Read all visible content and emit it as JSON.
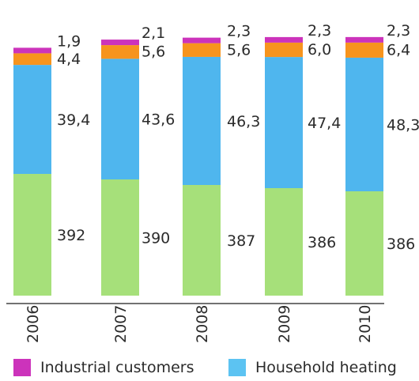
{
  "chart_data": {
    "type": "bar",
    "stacked": true,
    "categories": [
      "2006",
      "2007",
      "2008",
      "2009",
      "2010"
    ],
    "series": [
      {
        "name": "",
        "color": "#a6e07a",
        "values": [
          "392",
          "390",
          "387",
          "386",
          "386"
        ]
      },
      {
        "name": "Household heating",
        "color": "#4fb6ee",
        "values": [
          "39,4",
          "43,6",
          "46,3",
          "47,4",
          "48,3"
        ]
      },
      {
        "name": "",
        "color": "#f7941d",
        "values": [
          "4,4",
          "5,6",
          "5,6",
          "6,0",
          "6,4"
        ]
      },
      {
        "name": "Industrial customers",
        "color": "#cc33bb",
        "values": [
          "1,9",
          "2,1",
          "2,3",
          "2,3",
          "2,3"
        ]
      }
    ],
    "legend_position": "bottom",
    "grid": false
  }
}
